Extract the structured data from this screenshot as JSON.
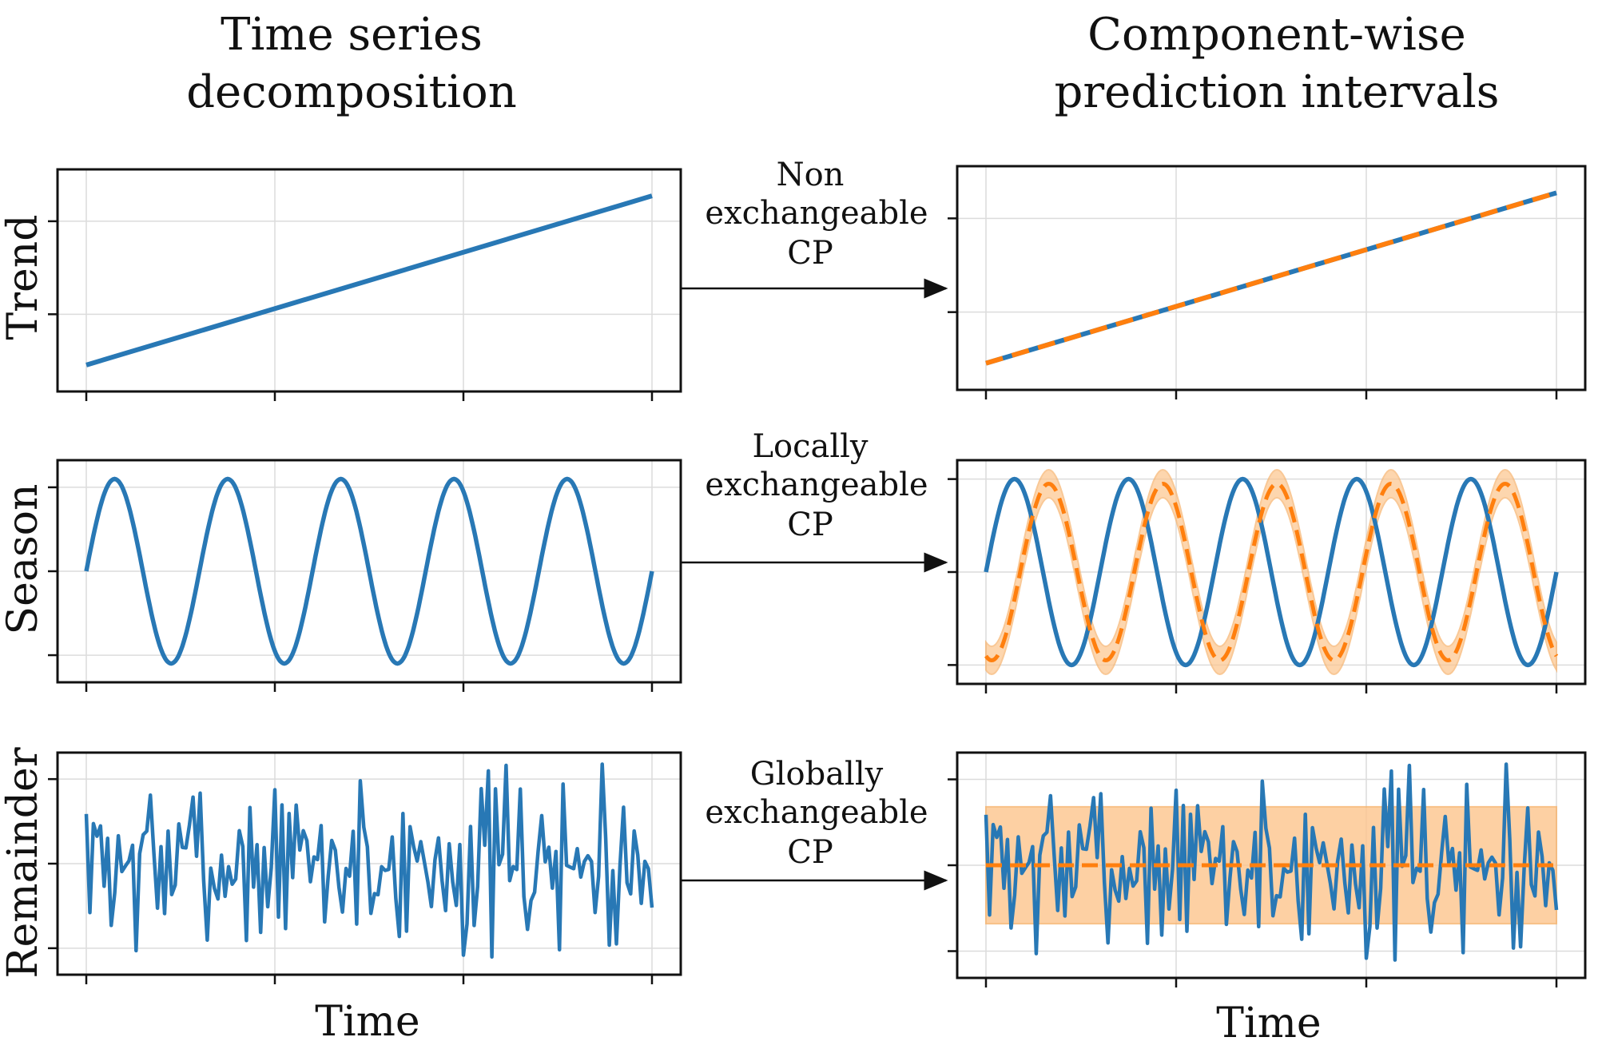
{
  "titles": {
    "left": [
      "Time series",
      "decomposition"
    ],
    "right": [
      "Component-wise",
      "prediction intervals"
    ]
  },
  "row_labels": [
    "Trend",
    "Season",
    "Remainder"
  ],
  "x_axis_label": "Time",
  "arrows": [
    {
      "label": [
        "Non",
        "exchangeable",
        "CP"
      ]
    },
    {
      "label": [
        "Locally",
        "exchangeable",
        "CP"
      ]
    },
    {
      "label": [
        "Globally",
        "exchangeable",
        "CP"
      ]
    }
  ],
  "colors": {
    "series": "#2878b5",
    "prediction": "#ff7f0e",
    "interval_fill": "#fdc58d",
    "grid": "#dcdcdc",
    "axes": "#111111"
  },
  "chart_data": [
    {
      "type": "line",
      "panel": "left-trend",
      "component": "Trend",
      "x_range": [
        0,
        1
      ],
      "y_range": [
        -0.1,
        1.1
      ],
      "series": [
        {
          "kind": "trend",
          "from": 0.0,
          "to": 1.0
        }
      ],
      "grid": true
    },
    {
      "type": "line",
      "panel": "left-season",
      "component": "Season",
      "x_range": [
        0,
        1
      ],
      "y_range": [
        -1.1,
        1.1
      ],
      "series": [
        {
          "kind": "sine",
          "cycles": 5,
          "amplitude": 1.0
        }
      ],
      "grid": true
    },
    {
      "type": "line",
      "panel": "left-remainder",
      "component": "Remainder",
      "x_range": [
        0,
        1
      ],
      "y_range": [
        -1.2,
        1.2
      ],
      "series": [
        {
          "kind": "noise",
          "amplitude": 0.5
        }
      ],
      "grid": true
    },
    {
      "type": "line",
      "panel": "right-trend",
      "component": "Trend",
      "x_range": [
        0,
        1
      ],
      "y_range": [
        -0.1,
        1.1
      ],
      "series": [
        {
          "kind": "trend",
          "from": 0.0,
          "to": 1.0
        },
        {
          "kind": "trend-prediction",
          "from": 0.0,
          "to": 1.0
        }
      ],
      "grid": true
    },
    {
      "type": "line",
      "panel": "right-season",
      "component": "Season",
      "x_range": [
        0,
        1
      ],
      "y_range": [
        -1.1,
        1.1
      ],
      "series": [
        {
          "kind": "sine",
          "cycles": 5,
          "amplitude": 1.0
        },
        {
          "kind": "sine-prediction",
          "cycles": 5,
          "amplitude": 0.95,
          "phase_lag": 0.06
        }
      ],
      "interval": {
        "half_width": 0.15
      },
      "grid": true
    },
    {
      "type": "line",
      "panel": "right-remainder",
      "component": "Remainder",
      "x_range": [
        0,
        1
      ],
      "y_range": [
        -1.2,
        1.2
      ],
      "series": [
        {
          "kind": "noise",
          "amplitude": 0.5
        },
        {
          "kind": "zero-prediction"
        }
      ],
      "interval": {
        "lower": -0.68,
        "upper": 0.68
      },
      "grid": true
    }
  ]
}
